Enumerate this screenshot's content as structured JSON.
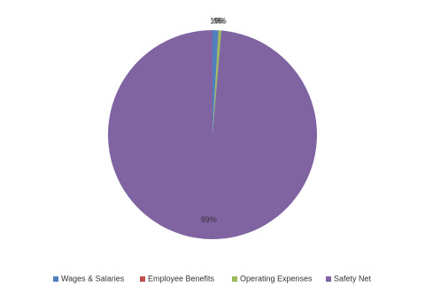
{
  "chart_data": {
    "type": "pie",
    "categories": [
      "Wages & Salaries",
      "Employee Benefits",
      "Operating Expenses",
      "Safety Net"
    ],
    "values": [
      0.9,
      0.05,
      0.4,
      98.65
    ],
    "value_labels": [
      "1%",
      "0%",
      "0%",
      "99%"
    ],
    "colors": [
      "#4f81bd",
      "#c0504d",
      "#9bbb59",
      "#8064a2"
    ],
    "legend": "bottom"
  }
}
